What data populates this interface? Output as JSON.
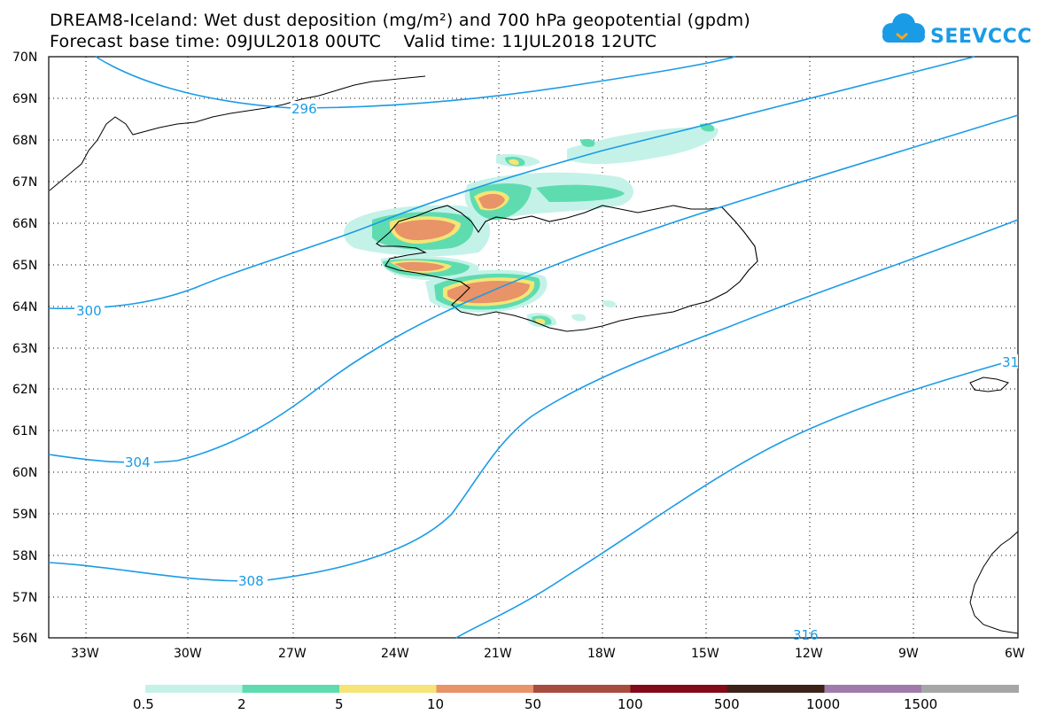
{
  "header": {
    "title_line1": "DREAM8-Iceland: Wet dust deposition (mg/m²) and 700 hPa geopotential (gpdm)",
    "title_line2": "Forecast base time: 09JUL2018 00UTC    Valid time: 11JUL2018 12UTC"
  },
  "logo": {
    "text": "SEEVCCC",
    "icon": "cloud-logo-icon"
  },
  "map": {
    "lat_labels": [
      "70N",
      "69N",
      "68N",
      "67N",
      "66N",
      "65N",
      "64N",
      "63N",
      "62N",
      "61N",
      "60N",
      "59N",
      "58N",
      "57N",
      "56N"
    ],
    "lon_labels": [
      "33W",
      "30W",
      "27W",
      "24W",
      "21W",
      "18W",
      "15W",
      "12W",
      "9W",
      "6W"
    ],
    "contour_labels": [
      "296",
      "300",
      "304",
      "308",
      "31",
      "316"
    ],
    "contour_color": "#1a9be6"
  },
  "legend": {
    "labels": [
      "0.5",
      "2",
      "5",
      "10",
      "50",
      "100",
      "500",
      "1000",
      "1500"
    ],
    "colors": [
      "#c4f2e8",
      "#5edcb0",
      "#f5e576",
      "#e89368",
      "#a84c40",
      "#820a1a",
      "#3c2218",
      "#a07aa8",
      "#a6a6a6"
    ]
  }
}
